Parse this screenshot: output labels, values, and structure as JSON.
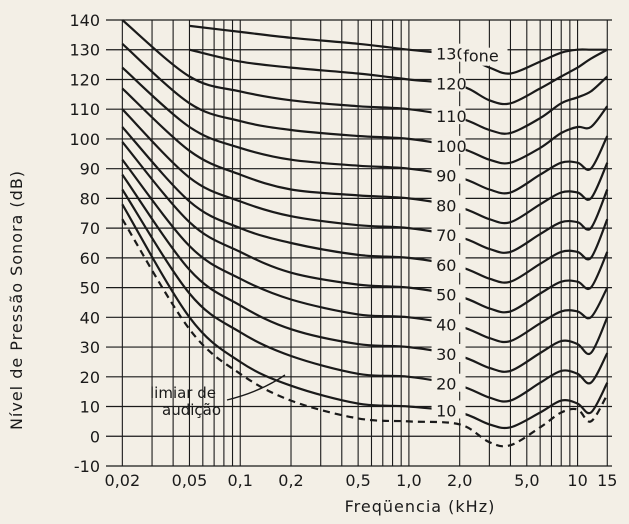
{
  "chart_data": {
    "type": "line",
    "title": "",
    "xlabel": "Freqüencia (kHz)",
    "ylabel": "Nível de Pressão Sonora (dB)",
    "x_scale": "log",
    "xlim": [
      0.016,
      16
    ],
    "ylim": [
      -10,
      140
    ],
    "x_ticks": [
      0.02,
      0.05,
      0.1,
      0.2,
      0.5,
      1.0,
      2.0,
      5.0,
      10,
      15
    ],
    "x_tick_labels": [
      "0,02",
      "0,05",
      "0,1",
      "0,2",
      "0,5",
      "1,0",
      "2,0",
      "5,0",
      "10",
      "15"
    ],
    "y_ticks": [
      -10,
      0,
      10,
      20,
      30,
      40,
      50,
      60,
      70,
      80,
      90,
      100,
      110,
      120,
      130,
      140
    ],
    "y_tick_labels": [
      "-10",
      "0",
      "10",
      "20",
      "30",
      "40",
      "50",
      "60",
      "70",
      "80",
      "90",
      "100",
      "110",
      "120",
      "130",
      "140"
    ],
    "grid": true,
    "legend": "none",
    "x": [
      0.02,
      0.05,
      0.1,
      0.2,
      0.5,
      1.0,
      2.0,
      3.0,
      4.0,
      6.0,
      8.0,
      10.0,
      12.0,
      15.0
    ],
    "series": [
      {
        "name": "130",
        "values": [
          null,
          138,
          136,
          134,
          132,
          130,
          128,
          124,
          122,
          126,
          129,
          130,
          130,
          130
        ]
      },
      {
        "name": "120",
        "values": [
          null,
          130,
          126,
          124,
          122,
          120,
          118,
          113,
          112,
          117,
          121,
          124,
          127,
          130
        ]
      },
      {
        "name": "110",
        "values": [
          140,
          121,
          116,
          113,
          111,
          110,
          107,
          103,
          102,
          107,
          112,
          114,
          116,
          121
        ]
      },
      {
        "name": "100",
        "values": [
          132,
          112,
          106,
          103,
          101,
          100,
          97,
          93,
          92,
          97,
          102,
          104,
          104,
          111
        ]
      },
      {
        "name": "90",
        "values": [
          124,
          104,
          97,
          93,
          91,
          90,
          87,
          83,
          82,
          88,
          92,
          92,
          90,
          101
        ]
      },
      {
        "name": "80",
        "values": [
          117,
          96,
          88,
          83,
          81,
          80,
          77,
          73,
          72,
          78,
          82,
          82,
          80,
          92
        ]
      },
      {
        "name": "70",
        "values": [
          110,
          87,
          79,
          74,
          71,
          70,
          67,
          63,
          62,
          68,
          72,
          72,
          70,
          83
        ]
      },
      {
        "name": "60",
        "values": [
          104,
          79,
          70,
          65,
          61,
          60,
          57,
          53,
          52,
          58,
          62,
          62,
          60,
          73
        ]
      },
      {
        "name": "50",
        "values": [
          99,
          72,
          62,
          55,
          51,
          50,
          47,
          43,
          42,
          48,
          52,
          52,
          50,
          62
        ]
      },
      {
        "name": "40",
        "values": [
          93,
          64,
          53,
          46,
          41,
          40,
          37,
          33,
          32,
          38,
          42,
          42,
          40,
          50
        ]
      },
      {
        "name": "30",
        "values": [
          88,
          56,
          44,
          36,
          31,
          30,
          27,
          23,
          22,
          28,
          32,
          31,
          28,
          40
        ]
      },
      {
        "name": "20",
        "values": [
          83,
          48,
          35,
          27,
          21,
          20,
          17,
          13,
          12,
          18,
          22,
          21,
          18,
          28
        ]
      },
      {
        "name": "10",
        "values": [
          78,
          40,
          25,
          17,
          11,
          10,
          8,
          4,
          3,
          8,
          12,
          11,
          8,
          18
        ]
      },
      {
        "name": "limiar de audição",
        "style": "dashed",
        "values": [
          73,
          36,
          21,
          12,
          6,
          5,
          4,
          -2,
          -3,
          3,
          8,
          9,
          5,
          14
        ]
      }
    ],
    "unit_label": "fone",
    "threshold_label_line1": "limiar de",
    "threshold_label_line2": "audição",
    "colors": {
      "background": "#f3efe6",
      "ink": "#1a1a1a"
    }
  }
}
